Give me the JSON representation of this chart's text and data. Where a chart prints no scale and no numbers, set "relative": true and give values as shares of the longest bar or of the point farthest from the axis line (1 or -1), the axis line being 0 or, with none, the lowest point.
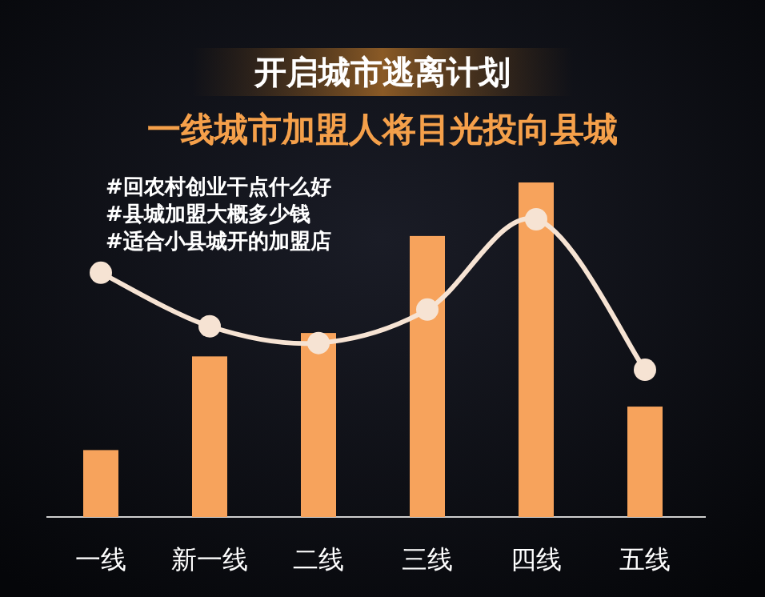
{
  "chart_data": {
    "type": "bar",
    "relative": true,
    "title": "开启城市逃离计划",
    "subtitle": "一线城市加盟人将目光投向县城",
    "annotations": [
      "#回农村创业干点什么好",
      "#县城加盟大概多少钱",
      "#适合小县城开的加盟店"
    ],
    "categories": [
      "一线",
      "新一线",
      "二线",
      "三线",
      "四线",
      "五线"
    ],
    "marker": "circle",
    "series": [
      {
        "color": "#f7a35c",
        "values": [
          0.2,
          0.48,
          0.55,
          0.84,
          1,
          0.33
        ]
      },
      {
        "type": "line",
        "color": "#f6e3d3",
        "values": [
          0.73,
          0.57,
          0.52,
          0.62,
          0.89,
          0.44
        ]
      }
    ]
  }
}
